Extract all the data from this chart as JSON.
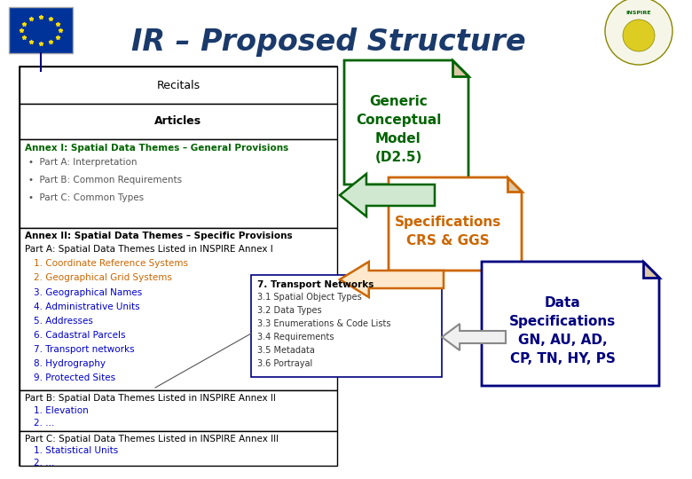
{
  "title": "IR – Proposed Structure",
  "title_color": "#1a3a6b",
  "title_fontsize": 24,
  "bg_color": "#ffffff",
  "annex1_title": "Annex I: Spatial Data Themes – General Provisions",
  "annex1_title_color": "#006400",
  "annex2_title": "Annex II: Spatial Data Themes – Specific Provisions",
  "annex2_subtitle": "Part A: Spatial Data Themes Listed in INSPIRE Annex I",
  "annex2_items_orange": [
    "1. Coordinate Reference Systems",
    "2. Geographical Grid Systems"
  ],
  "annex2_items_blue": [
    "3. Geographical Names",
    "4. Administrative Units",
    "5. Addresses",
    "6. Cadastral Parcels",
    "7. Transport networks",
    "8. Hydrography",
    "9. Protected Sites"
  ],
  "annex2_orange_color": "#cc6600",
  "annex2_blue_color": "#0000cc",
  "partB_title": "Part B: Spatial Data Themes Listed in INSPIRE Annex II",
  "partB_items": [
    "1. Elevation",
    "2. ..."
  ],
  "partC_title": "Part C: Spatial Data Themes Listed in INSPIRE Annex III",
  "partC_items": [
    "1. Statistical Units",
    "2. ..."
  ],
  "tn_title": "7. Transport Networks",
  "tn_items": [
    "3.1 Spatial Object Types",
    "3.2 Data Types",
    "3.3 Enumerations & Code Lists",
    "3.4 Requirements",
    "3.5 Metadata",
    "3.6 Portrayal"
  ],
  "gcm_text": "Generic\nConceptual\nModel\n(D2.5)",
  "gcm_color": "#006400",
  "specs_text": "Specifications\nCRS & GGS",
  "specs_color": "#cc6600",
  "ds_text": "Data\nSpecifications\nGN, AU, AD,\nCP, TN, HY, PS",
  "ds_color": "#000080"
}
